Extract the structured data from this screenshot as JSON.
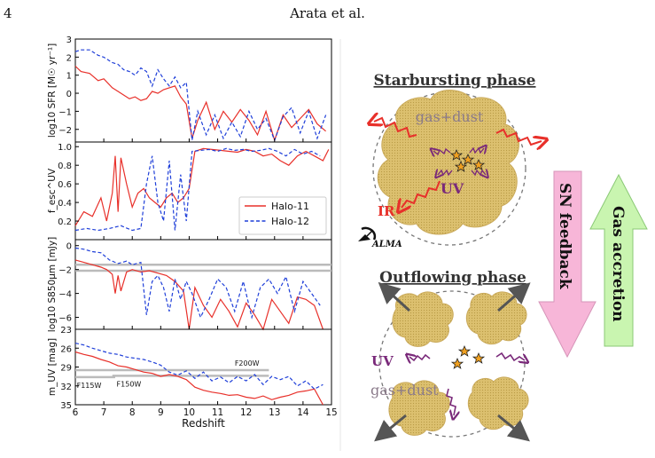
{
  "header": {
    "page_number": "4",
    "running_head": "Arata et al."
  },
  "colors": {
    "halo11": "#e8302a",
    "halo12": "#1f3fd9",
    "cloud": "#d9be6e",
    "pink_arrow": "#f7b6d8",
    "green_arrow": "#c9f5b0",
    "ir_arrow": "#e8302a",
    "uv_arrow": "#7a2a7a",
    "out_arrow": "#555555"
  },
  "chart_data": [
    {
      "type": "line",
      "panel": "sfr",
      "ylabel": "log10 SFR [M☉ yr⁻¹]",
      "ylim": [
        -2.7,
        3.0
      ],
      "yticks": [
        "3",
        "2",
        "1",
        "0",
        "−1",
        "−2"
      ],
      "ytick_values": [
        3,
        2,
        1,
        0,
        -1,
        -2
      ],
      "series": [
        {
          "name": "Halo-11",
          "x": [
            6.0,
            6.2,
            6.5,
            6.8,
            7.0,
            7.3,
            7.5,
            7.7,
            7.9,
            8.1,
            8.3,
            8.5,
            8.7,
            8.9,
            9.1,
            9.3,
            9.5,
            9.7,
            9.9,
            10.1,
            10.3,
            10.6,
            10.9,
            11.2,
            11.5,
            11.8,
            12.1,
            12.4,
            12.7,
            13.0,
            13.3,
            13.6,
            13.9,
            14.2,
            14.5,
            14.8
          ],
          "y": [
            1.5,
            1.2,
            1.1,
            0.7,
            0.8,
            0.3,
            0.1,
            -0.1,
            -0.3,
            -0.2,
            -0.4,
            -0.3,
            0.1,
            0.0,
            0.2,
            0.3,
            0.4,
            -0.2,
            -0.6,
            -2.5,
            -1.5,
            -0.5,
            -2.0,
            -1.0,
            -1.6,
            -0.9,
            -1.5,
            -2.3,
            -1.0,
            -2.6,
            -1.2,
            -1.9,
            -1.4,
            -0.9,
            -1.7,
            -2.1
          ]
        },
        {
          "name": "Halo-12",
          "x": [
            6.0,
            6.2,
            6.5,
            6.8,
            7.0,
            7.3,
            7.5,
            7.7,
            7.9,
            8.1,
            8.3,
            8.5,
            8.7,
            8.9,
            9.1,
            9.3,
            9.5,
            9.7,
            9.9,
            10.1,
            10.3,
            10.6,
            10.9,
            11.2,
            11.5,
            11.8,
            12.1,
            12.4,
            12.7,
            13.0,
            13.3,
            13.6,
            13.9,
            14.2,
            14.5,
            14.8
          ],
          "y": [
            2.3,
            2.4,
            2.4,
            2.1,
            2.0,
            1.7,
            1.6,
            1.3,
            1.2,
            1.0,
            1.4,
            1.2,
            0.4,
            1.3,
            0.8,
            0.4,
            0.9,
            0.3,
            0.6,
            -2.6,
            -1.0,
            -2.3,
            -1.2,
            -2.5,
            -1.6,
            -2.4,
            -1.0,
            -2.0,
            -1.4,
            -2.6,
            -1.3,
            -0.8,
            -2.2,
            -1.0,
            -2.5,
            -1.2
          ]
        }
      ]
    },
    {
      "type": "line",
      "panel": "fesc",
      "ylabel": "f_esc^UV",
      "ylim": [
        0.0,
        1.05
      ],
      "yticks": [
        "1.0",
        "0.8",
        "0.6",
        "0.4",
        "0.2"
      ],
      "ytick_values": [
        1.0,
        0.8,
        0.6,
        0.4,
        0.2
      ],
      "legend": {
        "position": "lower-right",
        "entries": [
          "Halo-11",
          "Halo-12"
        ]
      },
      "series": [
        {
          "name": "Halo-11",
          "x": [
            6.0,
            6.3,
            6.6,
            6.9,
            7.1,
            7.3,
            7.4,
            7.5,
            7.6,
            7.8,
            8.0,
            8.2,
            8.4,
            8.6,
            8.8,
            9.0,
            9.2,
            9.4,
            9.6,
            9.8,
            10.0,
            10.2,
            10.5,
            10.8,
            11.1,
            11.4,
            11.7,
            12.0,
            12.3,
            12.6,
            12.9,
            13.2,
            13.5,
            13.8,
            14.1,
            14.4,
            14.7,
            14.9
          ],
          "y": [
            0.15,
            0.3,
            0.25,
            0.45,
            0.2,
            0.5,
            0.9,
            0.3,
            0.88,
            0.6,
            0.35,
            0.5,
            0.55,
            0.45,
            0.4,
            0.35,
            0.45,
            0.5,
            0.4,
            0.45,
            0.55,
            0.95,
            0.98,
            0.97,
            0.96,
            0.95,
            0.94,
            0.97,
            0.95,
            0.9,
            0.92,
            0.85,
            0.8,
            0.9,
            0.95,
            0.9,
            0.85,
            0.97
          ]
        },
        {
          "name": "Halo-12",
          "x": [
            6.0,
            6.4,
            6.8,
            7.2,
            7.6,
            8.0,
            8.3,
            8.5,
            8.7,
            8.9,
            9.1,
            9.3,
            9.5,
            9.7,
            9.9,
            10.1,
            10.4,
            10.7,
            11.0,
            11.3,
            11.6,
            11.9,
            12.2,
            12.5,
            12.8,
            13.1,
            13.4,
            13.7,
            14.0,
            14.3,
            14.6
          ],
          "y": [
            0.1,
            0.12,
            0.1,
            0.12,
            0.15,
            0.1,
            0.12,
            0.6,
            0.9,
            0.4,
            0.2,
            0.85,
            0.1,
            0.7,
            0.2,
            0.95,
            0.96,
            0.97,
            0.95,
            0.98,
            0.96,
            0.97,
            0.95,
            0.96,
            0.98,
            0.95,
            0.9,
            0.97,
            0.92,
            0.95,
            0.9
          ]
        }
      ]
    },
    {
      "type": "line",
      "panel": "s850",
      "ylabel": "log10 S850μm [mJy]",
      "ylim": [
        -7.0,
        0.5
      ],
      "yticks": [
        "0",
        "−2",
        "−4",
        "−6"
      ],
      "ytick_values": [
        0,
        -2,
        -4,
        -6
      ],
      "reference_levels": [
        -1.6,
        -2.1
      ],
      "series": [
        {
          "name": "Halo-11",
          "x": [
            6.0,
            6.3,
            6.6,
            6.9,
            7.1,
            7.3,
            7.4,
            7.5,
            7.6,
            7.8,
            8.0,
            8.3,
            8.6,
            8.9,
            9.2,
            9.5,
            9.8,
            10.0,
            10.2,
            10.5,
            10.8,
            11.1,
            11.4,
            11.7,
            12.0,
            12.3,
            12.6,
            12.9,
            13.2,
            13.5,
            13.8,
            14.1,
            14.4,
            14.7
          ],
          "y": [
            -1.2,
            -1.4,
            -1.6,
            -1.8,
            -2.0,
            -2.4,
            -4.0,
            -2.5,
            -3.8,
            -2.2,
            -2.0,
            -2.2,
            -2.1,
            -2.3,
            -2.5,
            -3.0,
            -3.8,
            -7.0,
            -3.5,
            -5.0,
            -6.0,
            -4.5,
            -5.5,
            -6.8,
            -4.8,
            -5.8,
            -7.0,
            -4.5,
            -5.5,
            -6.5,
            -4.3,
            -4.5,
            -5.0,
            -7.0
          ]
        },
        {
          "name": "Halo-12",
          "x": [
            6.0,
            6.3,
            6.6,
            6.9,
            7.2,
            7.5,
            7.8,
            8.0,
            8.3,
            8.5,
            8.7,
            8.9,
            9.1,
            9.3,
            9.5,
            9.7,
            9.9,
            10.1,
            10.4,
            10.7,
            11.0,
            11.3,
            11.6,
            11.9,
            12.2,
            12.5,
            12.8,
            13.1,
            13.4,
            13.7,
            14.0,
            14.3,
            14.6
          ],
          "y": [
            -0.2,
            -0.3,
            -0.5,
            -0.6,
            -1.2,
            -1.5,
            -1.3,
            -1.6,
            -1.4,
            -5.8,
            -3.0,
            -2.5,
            -3.5,
            -5.5,
            -2.8,
            -4.5,
            -3.0,
            -4.0,
            -6.0,
            -4.5,
            -2.8,
            -3.5,
            -5.5,
            -3.0,
            -6.0,
            -3.5,
            -2.8,
            -4.0,
            -2.6,
            -5.5,
            -3.0,
            -4.0,
            -5.0
          ]
        }
      ]
    },
    {
      "type": "line",
      "panel": "muv",
      "ylabel": "m_UV [mag]",
      "xlabel": "Redshift",
      "ylim": [
        35.0,
        23.0
      ],
      "yticks": [
        "23",
        "26",
        "29",
        "32",
        "35"
      ],
      "ytick_values": [
        23,
        26,
        29,
        32,
        35
      ],
      "xticks": [
        "6",
        "7",
        "8",
        "9",
        "10",
        "11",
        "12",
        "13",
        "14",
        "15"
      ],
      "xtick_values": [
        6,
        7,
        8,
        9,
        10,
        11,
        12,
        13,
        14,
        15
      ],
      "xlim": [
        6.0,
        15.0
      ],
      "filters": [
        {
          "label": "F115W",
          "level": 30.6,
          "x_start": 6.0,
          "x_end": 7.4
        },
        {
          "label": "F150W",
          "level": 30.4,
          "x_start": 7.3,
          "x_end": 12.8
        },
        {
          "label": "F200W",
          "level": 29.5,
          "x_start": 6.0,
          "x_end": 12.8
        }
      ],
      "series": [
        {
          "name": "Halo-11",
          "x": [
            6.0,
            6.3,
            6.6,
            6.9,
            7.2,
            7.5,
            7.8,
            8.1,
            8.4,
            8.7,
            9.0,
            9.3,
            9.6,
            9.9,
            10.2,
            10.5,
            10.8,
            11.1,
            11.4,
            11.7,
            12.0,
            12.3,
            12.6,
            12.9,
            13.2,
            13.5,
            13.8,
            14.1,
            14.4,
            14.7
          ],
          "y": [
            26.6,
            27.0,
            27.3,
            27.8,
            28.2,
            28.8,
            29.0,
            29.4,
            29.8,
            30.0,
            30.5,
            30.2,
            30.5,
            31.0,
            32.2,
            32.7,
            33.0,
            33.2,
            33.5,
            33.4,
            33.8,
            34.0,
            33.6,
            34.2,
            33.8,
            33.5,
            33.0,
            32.8,
            32.5,
            35.0
          ]
        },
        {
          "name": "Halo-12",
          "x": [
            6.0,
            6.3,
            6.6,
            6.9,
            7.2,
            7.5,
            7.8,
            8.1,
            8.4,
            8.7,
            9.0,
            9.3,
            9.6,
            9.9,
            10.2,
            10.5,
            10.8,
            11.1,
            11.4,
            11.7,
            12.0,
            12.3,
            12.6,
            12.9,
            13.2,
            13.5,
            13.8,
            14.1,
            14.4,
            14.7
          ],
          "y": [
            25.2,
            25.5,
            26.0,
            26.4,
            26.8,
            27.0,
            27.4,
            27.6,
            27.8,
            28.2,
            28.7,
            29.8,
            30.3,
            29.6,
            30.8,
            29.8,
            31.2,
            30.6,
            31.5,
            30.5,
            31.2,
            30.2,
            31.8,
            30.5,
            31.0,
            30.5,
            32.0,
            31.2,
            32.5,
            31.8
          ]
        }
      ]
    }
  ],
  "diagram": {
    "starburst_title": "Starbursting phase",
    "outflow_title": "Outflowing phase",
    "gas_dust": "gas+dust",
    "uv": "UV",
    "ir": "IR",
    "alma": "ALMA",
    "sn_feedback": "SN feedback",
    "gas_accretion": "Gas accretion"
  }
}
